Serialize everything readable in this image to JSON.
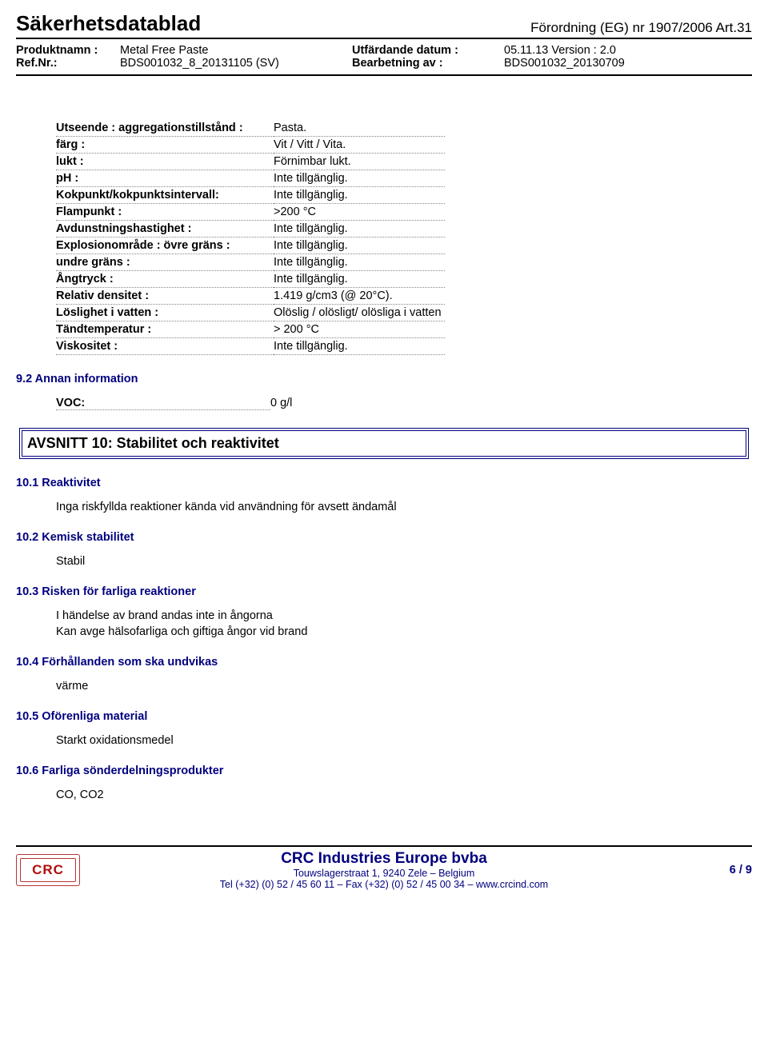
{
  "header": {
    "doc_title": "Säkerhetsdatablad",
    "regulation": "Förordning (EG) nr 1907/2006 Art.31",
    "meta": {
      "product_label": "Produktnamn :",
      "product_value": "Metal Free Paste",
      "issued_label": "Utfärdande datum :",
      "issued_value": "05.11.13 Version : 2.0",
      "ref_label": "Ref.Nr.:",
      "ref_value": "BDS001032_8_20131105 (SV)",
      "worked_label": "Bearbetning av :",
      "worked_value": "BDS001032_20130709"
    }
  },
  "props": [
    {
      "k": "Utseende : aggregationstillstånd :",
      "v": "Pasta."
    },
    {
      "k": "färg :",
      "v": "Vit / Vitt / Vita."
    },
    {
      "k": "lukt :",
      "v": "Förnimbar lukt."
    },
    {
      "k": "pH :",
      "v": "Inte tillgänglig."
    },
    {
      "k": "Kokpunkt/kokpunktsintervall:",
      "v": "Inte tillgänglig."
    },
    {
      "k": "Flampunkt :",
      "v": ">200 °C"
    },
    {
      "k": "Avdunstningshastighet :",
      "v": "Inte tillgänglig."
    },
    {
      "k": "Explosionområde : övre gräns :",
      "v": "Inte tillgänglig."
    },
    {
      "k": "undre gräns :",
      "v": "Inte tillgänglig."
    },
    {
      "k": "Ångtryck :",
      "v": "Inte tillgänglig."
    },
    {
      "k": "Relativ densitet :",
      "v": "1.419 g/cm3 (@ 20°C)."
    },
    {
      "k": "Löslighet i vatten :",
      "v": "Olöslig / olösligt/ olösliga i vatten"
    },
    {
      "k": "Tändtemperatur :",
      "v": "> 200 °C"
    },
    {
      "k": "Viskositet :",
      "v": "Inte tillgänglig."
    }
  ],
  "section92_title": "9.2 Annan information",
  "voc": {
    "label": "VOC:",
    "value": "0 g/l"
  },
  "avsnitt10": "AVSNITT 10: Stabilitet och reaktivitet",
  "s10": {
    "s1_title": "10.1 Reaktivitet",
    "s1_body": "Inga riskfyllda reaktioner kända vid användning för avsett ändamål",
    "s2_title": "10.2 Kemisk stabilitet",
    "s2_body": "Stabil",
    "s3_title": "10.3 Risken för farliga reaktioner",
    "s3_body1": "I händelse av brand andas inte in ångorna",
    "s3_body2": "Kan avge hälsofarliga och giftiga ångor vid brand",
    "s4_title": "10.4 Förhållanden som ska undvikas",
    "s4_body": "värme",
    "s5_title": "10.5 Oförenliga material",
    "s5_body": "Starkt oxidationsmedel",
    "s6_title": "10.6 Farliga sönderdelningsprodukter",
    "s6_body": "CO, CO2"
  },
  "footer": {
    "logo": "CRC",
    "company": "CRC Industries Europe bvba",
    "addr1": "Touwslagerstraat 1,  9240 Zele – Belgium",
    "addr2": "Tel (+32) (0) 52 / 45 60 11 – Fax (+32) (0) 52 / 45 00 34 –  www.crcind.com",
    "page": "6 / 9"
  },
  "colors": {
    "blue": "#00007f",
    "red": "#b10e0e"
  }
}
